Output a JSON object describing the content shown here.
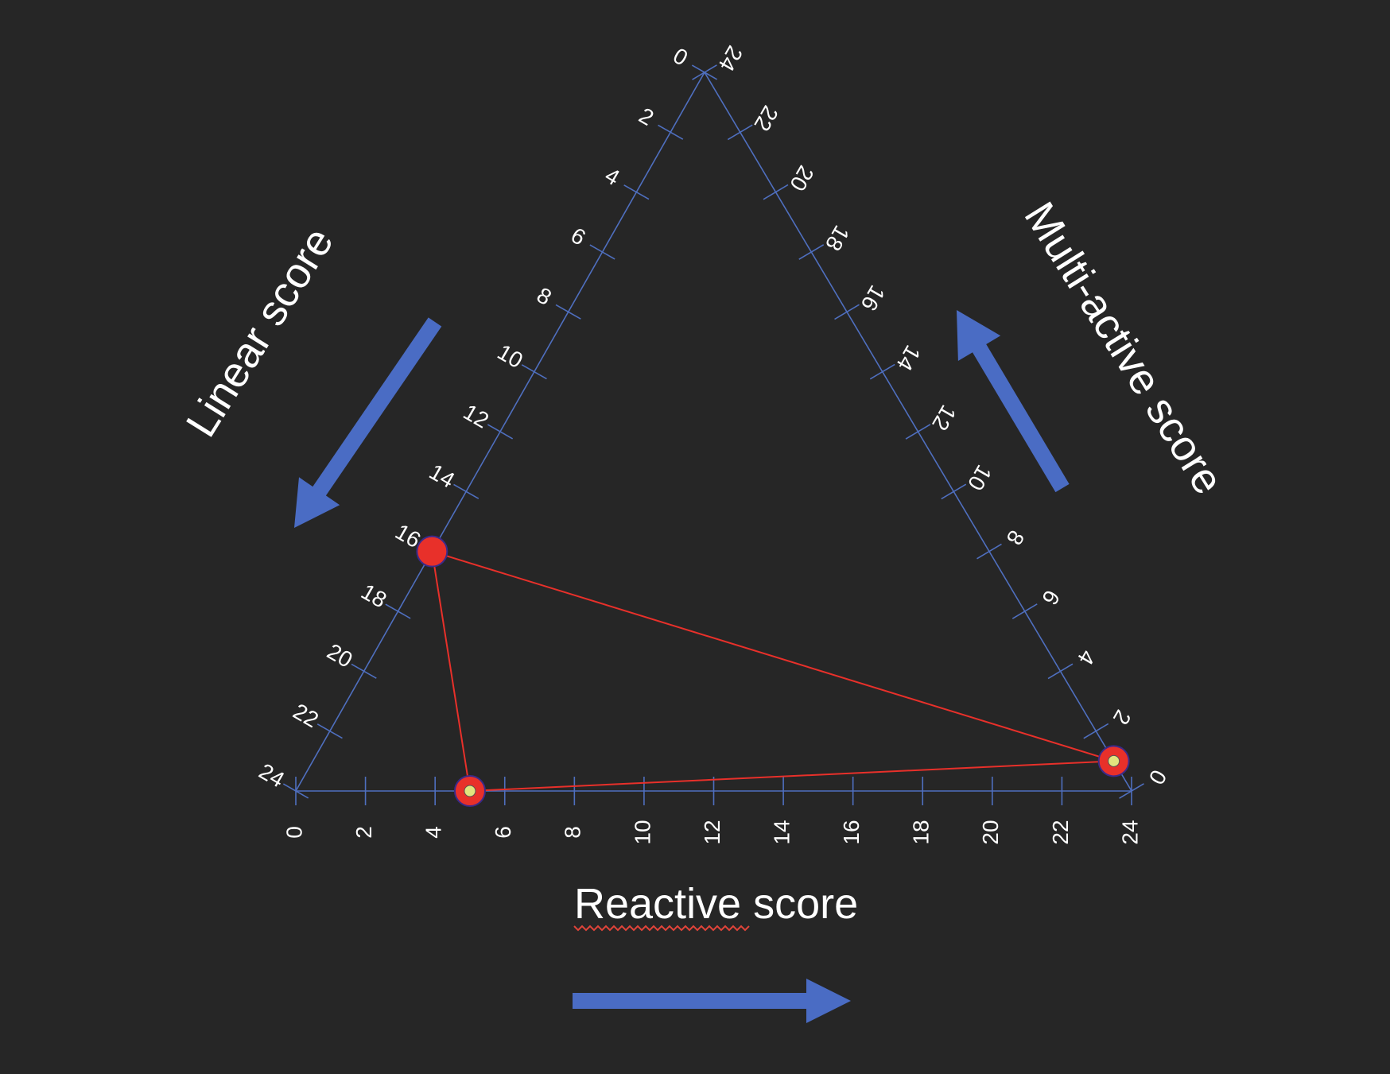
{
  "axes": {
    "bottom": {
      "title": "Reactive score",
      "ticks": [
        "0",
        "2",
        "4",
        "6",
        "8",
        "10",
        "12",
        "14",
        "16",
        "18",
        "20",
        "22",
        "24"
      ]
    },
    "left": {
      "title": "Linear score",
      "ticks": [
        "0",
        "2",
        "4",
        "6",
        "8",
        "10",
        "12",
        "14",
        "16",
        "18",
        "20",
        "22",
        "24"
      ]
    },
    "right": {
      "title": "Multi-active score",
      "ticks": [
        "0",
        "2",
        "4",
        "6",
        "8",
        "10",
        "12",
        "14",
        "16",
        "18",
        "20",
        "22",
        "24"
      ]
    }
  },
  "points": [
    {
      "name": "linear-point",
      "axis": "left",
      "value": 16,
      "style": "solid"
    },
    {
      "name": "reactive-point",
      "axis": "bottom",
      "value": 5,
      "style": "ringed"
    },
    {
      "name": "multi-active-point",
      "axis": "right",
      "value": 1,
      "style": "ringed"
    }
  ],
  "colors": {
    "background": "#262626",
    "axis": "#4f6fbf",
    "arrow": "#4a6cc4",
    "point": "#e8302a",
    "point_center": "#e2e47e",
    "connector": "#e8302a",
    "text": "#ffffff"
  }
}
